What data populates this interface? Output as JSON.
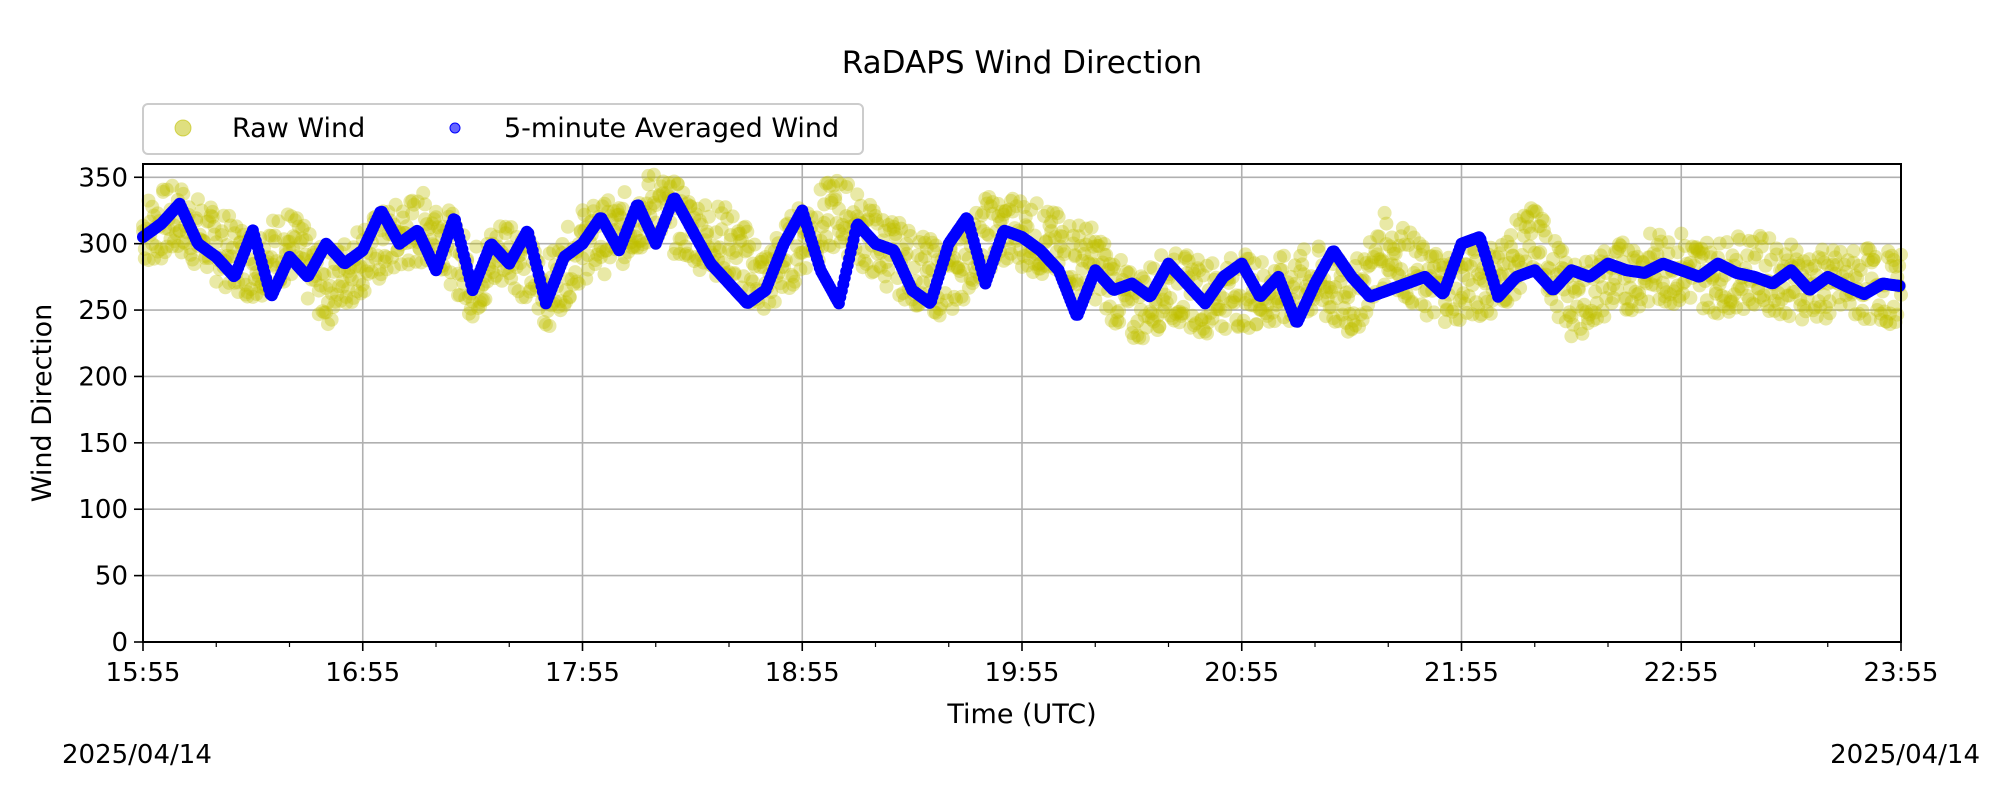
{
  "chart_data": {
    "type": "scatter",
    "title": "RaDAPS Wind Direction",
    "xlabel": "Time (UTC)",
    "ylabel": "Wind Direction",
    "x_ticks": [
      "15:55",
      "16:55",
      "17:55",
      "18:55",
      "19:55",
      "20:55",
      "21:55",
      "22:55",
      "23:55"
    ],
    "y_ticks": [
      0,
      50,
      100,
      150,
      200,
      250,
      300,
      350
    ],
    "xlim": [
      "15:55",
      "23:55"
    ],
    "ylim": [
      0,
      360
    ],
    "grid": true,
    "legend_placement": "top-left, above axes",
    "date_start": "2025/04/14",
    "date_end": "2025/04/14",
    "series": [
      {
        "name": "Raw Wind",
        "color": "#bfbf00",
        "note_spread_deg": 20,
        "times": [
          "15:55",
          "16:05",
          "16:15",
          "16:25",
          "16:35",
          "16:45",
          "16:55",
          "17:05",
          "17:15",
          "17:25",
          "17:35",
          "17:45",
          "17:55",
          "18:05",
          "18:15",
          "18:25",
          "18:35",
          "18:45",
          "18:55",
          "19:05",
          "19:15",
          "19:25",
          "19:35",
          "19:45",
          "19:55",
          "20:05",
          "20:15",
          "20:25",
          "20:35",
          "20:45",
          "20:55",
          "21:05",
          "21:15",
          "21:25",
          "21:35",
          "21:45",
          "21:55",
          "22:05",
          "22:15",
          "22:25",
          "22:35",
          "22:45",
          "22:55",
          "23:05",
          "23:15",
          "23:25",
          "23:35",
          "23:45",
          "23:55"
        ],
        "values": [
          310,
          318,
          298,
          285,
          300,
          265,
          290,
          305,
          315,
          270,
          300,
          262,
          300,
          308,
          330,
          310,
          300,
          270,
          305,
          325,
          300,
          282,
          270,
          308,
          310,
          295,
          285,
          250,
          268,
          260,
          265,
          262,
          272,
          255,
          300,
          270,
          268,
          275,
          305,
          255,
          272,
          280,
          282,
          275,
          280,
          272,
          268,
          270,
          265
        ]
      },
      {
        "name": "5-minute Averaged Wind",
        "color": "#0000ff",
        "times": [
          "15:55",
          "16:00",
          "16:05",
          "16:10",
          "16:15",
          "16:20",
          "16:25",
          "16:30",
          "16:35",
          "16:40",
          "16:45",
          "16:50",
          "16:55",
          "17:00",
          "17:05",
          "17:10",
          "17:15",
          "17:20",
          "17:25",
          "17:30",
          "17:35",
          "17:40",
          "17:45",
          "17:50",
          "17:55",
          "18:00",
          "18:05",
          "18:10",
          "18:15",
          "18:20",
          "18:25",
          "18:30",
          "18:35",
          "18:40",
          "18:45",
          "18:50",
          "18:55",
          "19:00",
          "19:05",
          "19:10",
          "19:15",
          "19:20",
          "19:25",
          "19:30",
          "19:35",
          "19:40",
          "19:45",
          "19:50",
          "19:55",
          "20:00",
          "20:05",
          "20:10",
          "20:15",
          "20:20",
          "20:25",
          "20:30",
          "20:35",
          "20:40",
          "20:45",
          "20:50",
          "20:55",
          "21:00",
          "21:05",
          "21:10",
          "21:15",
          "21:20",
          "21:25",
          "21:30",
          "21:35",
          "21:40",
          "21:45",
          "21:50",
          "21:55",
          "22:00",
          "22:05",
          "22:10",
          "22:15",
          "22:20",
          "22:25",
          "22:30",
          "22:35",
          "22:40",
          "22:45",
          "22:50",
          "22:55",
          "23:00",
          "23:05",
          "23:10",
          "23:15",
          "23:20",
          "23:25",
          "23:30",
          "23:35",
          "23:40",
          "23:45",
          "23:50",
          "23:55"
        ],
        "values": [
          305,
          315,
          330,
          300,
          290,
          275,
          310,
          260,
          290,
          275,
          300,
          285,
          295,
          325,
          300,
          310,
          280,
          320,
          265,
          300,
          285,
          310,
          255,
          290,
          300,
          320,
          295,
          330,
          300,
          335,
          310,
          285,
          270,
          255,
          265,
          300,
          325,
          280,
          255,
          315,
          300,
          295,
          265,
          255,
          300,
          320,
          270,
          310,
          305,
          295,
          280,
          245,
          280,
          265,
          270,
          260,
          285,
          270,
          255,
          275,
          285,
          260,
          275,
          240,
          270,
          295,
          275,
          260,
          265,
          270,
          275,
          262,
          300,
          305,
          260,
          275,
          280,
          265,
          280,
          275,
          285,
          280,
          278,
          285,
          280,
          275,
          285,
          278,
          275,
          270,
          280,
          265,
          275,
          268,
          262,
          270,
          268
        ]
      }
    ]
  }
}
